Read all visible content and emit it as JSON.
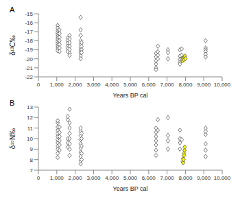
{
  "chart_data": [
    {
      "type": "scatter",
      "title": "A",
      "x_label": "Years BP cal",
      "y_label": "δ¹³C‰",
      "xlim": [
        0,
        10000
      ],
      "xticks": [
        0,
        {
          "value": 1000,
          "label": "1,000"
        },
        {
          "value": 2000,
          "label": "2,000"
        },
        {
          "value": 3000,
          "label": "3,000"
        },
        {
          "value": 4000,
          "label": "4,000"
        },
        {
          "value": 5000,
          "label": "5,000"
        },
        {
          "value": 6000,
          "label": "6,000"
        },
        {
          "value": 7000,
          "label": "7,000"
        },
        {
          "value": 8000,
          "label": "8,000"
        },
        {
          "value": 9000,
          "label": "9,000"
        },
        {
          "value": 10000,
          "label": "10,000"
        }
      ],
      "ylim": [
        -22,
        -15
      ],
      "yticks": [
        -22,
        -21,
        -20,
        -19,
        -18,
        -17,
        -16,
        -15
      ],
      "grid": false,
      "series": [
        {
          "color": "#ffffff",
          "marker": "diamond",
          "x": [
            1050,
            1050,
            1050,
            1050,
            1050,
            1050,
            1050,
            1050,
            1050,
            1050,
            1050,
            1050,
            1050,
            1050,
            1150,
            1150,
            1150,
            1150,
            1150,
            1150,
            1150,
            1600,
            1600,
            1600,
            1600,
            1600,
            1600,
            1700,
            1700,
            1700,
            1700,
            1700,
            1700,
            1700,
            2300,
            2300,
            2300,
            2300,
            2300,
            2300,
            2300,
            2300,
            2300,
            2300,
            2350,
            2350,
            2350,
            2350,
            6400,
            6400,
            6400,
            6400,
            6400,
            6400,
            6500,
            6500,
            6500,
            6500,
            7050,
            7050,
            7050,
            7700,
            7700,
            7700,
            7700,
            7700,
            7800,
            7800,
            7800,
            9100,
            9100,
            9100,
            9100,
            9100,
            9100
          ],
          "y": [
            -16.3,
            -16.6,
            -16.9,
            -17.1,
            -17.3,
            -17.5,
            -17.7,
            -17.9,
            -18.1,
            -18.3,
            -18.5,
            -18.7,
            -18.9,
            -19.1,
            -16.8,
            -17.2,
            -17.6,
            -18.0,
            -18.4,
            -18.8,
            -19.2,
            -17.7,
            -18.0,
            -18.3,
            -18.6,
            -18.9,
            -19.2,
            -17.4,
            -17.8,
            -18.2,
            -18.6,
            -19.0,
            -19.4,
            -19.6,
            -15.4,
            -16.8,
            -17.4,
            -18.0,
            -18.4,
            -18.8,
            -19.1,
            -19.4,
            -19.7,
            -20.0,
            -18.2,
            -18.6,
            -19.0,
            -19.3,
            -19.4,
            -19.8,
            -20.2,
            -20.6,
            -21.0,
            -21.2,
            -18.6,
            -19.2,
            -19.6,
            -20.0,
            -19.0,
            -19.3,
            -20.0,
            -19.0,
            -19.7,
            -20.1,
            -20.4,
            -20.6,
            -18.9,
            -19.6,
            -20.0,
            -18.0,
            -18.8,
            -19.0,
            -19.2,
            -19.5,
            -19.8
          ]
        },
        {
          "color": "#ffff00",
          "marker": "diamond",
          "x": [
            7850,
            7870,
            7880,
            7900,
            7920,
            7950,
            7980,
            8000
          ],
          "y": [
            -20.2,
            -19.9,
            -20.0,
            -19.9,
            -20.1,
            -19.8,
            -19.7,
            -20.0
          ]
        }
      ]
    },
    {
      "type": "scatter",
      "title": "B",
      "x_label": "Years BP cal",
      "y_label": "δ¹⁵N‰",
      "xlim": [
        0,
        10000
      ],
      "xticks": [
        0,
        {
          "value": 1000,
          "label": "1,000"
        },
        {
          "value": 2000,
          "label": "2,000"
        },
        {
          "value": 3000,
          "label": "3,000"
        },
        {
          "value": 4000,
          "label": "4,000"
        },
        {
          "value": 5000,
          "label": "5,000"
        },
        {
          "value": 6000,
          "label": "6,000"
        },
        {
          "value": 7000,
          "label": "7,000"
        },
        {
          "value": 8000,
          "label": "8,000"
        },
        {
          "value": 9000,
          "label": "9,000"
        },
        {
          "value": 10000,
          "label": "10,000"
        }
      ],
      "ylim": [
        7,
        13
      ],
      "yticks": [
        7,
        8,
        9,
        10,
        11,
        12,
        13
      ],
      "grid": false,
      "series": [
        {
          "color": "#ffffff",
          "marker": "diamond",
          "x": [
            1050,
            1050,
            1050,
            1050,
            1050,
            1050,
            1050,
            1050,
            1050,
            1050,
            1050,
            1050,
            1150,
            1150,
            1150,
            1150,
            1150,
            1150,
            1600,
            1600,
            1600,
            1600,
            1600,
            1700,
            1700,
            1700,
            1700,
            1700,
            1700,
            1700,
            1700,
            2300,
            2300,
            2300,
            2300,
            2300,
            2300,
            2300,
            2300,
            2300,
            2300,
            2350,
            2350,
            2350,
            2350,
            2350,
            6400,
            6400,
            6400,
            6400,
            6400,
            6400,
            6400,
            6500,
            6500,
            7050,
            7050,
            7050,
            7050,
            7700,
            7700,
            7700,
            7700,
            7800,
            9100,
            9100,
            9100,
            9100,
            9100,
            9100
          ],
          "y": [
            8.2,
            8.6,
            9.0,
            9.3,
            9.6,
            9.9,
            10.2,
            10.5,
            10.8,
            11.1,
            11.5,
            11.7,
            8.9,
            9.4,
            9.8,
            10.2,
            10.6,
            11.1,
            9.2,
            9.6,
            10.0,
            11.8,
            12.1,
            8.4,
            9.0,
            9.5,
            10.0,
            10.5,
            11.0,
            11.5,
            12.8,
            7.6,
            7.9,
            8.3,
            8.7,
            9.1,
            9.5,
            9.9,
            10.3,
            10.7,
            11.0,
            8.0,
            8.6,
            9.3,
            10.0,
            10.5,
            8.4,
            8.9,
            9.4,
            9.8,
            10.2,
            10.6,
            11.0,
            10.8,
            11.8,
            9.0,
            9.8,
            10.3,
            12.0,
            9.0,
            9.6,
            10.0,
            10.8,
            9.9,
            8.3,
            8.9,
            9.5,
            10.4,
            10.7,
            11.0
          ]
        },
        {
          "color": "#ffff00",
          "marker": "diamond",
          "x": [
            7850,
            7870,
            7880,
            7900,
            7920,
            7930,
            7950,
            7960
          ],
          "y": [
            7.8,
            8.1,
            7.7,
            8.0,
            8.6,
            8.4,
            8.9,
            9.2
          ]
        }
      ]
    }
  ]
}
